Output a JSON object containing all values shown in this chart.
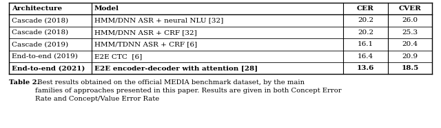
{
  "headers": [
    "Architecture",
    "Model",
    "CER",
    "CVER"
  ],
  "rows": [
    [
      "Cascade (2018)",
      "HMM/DNN ASR + neural NLU [32]",
      "20.2",
      "26.0"
    ],
    [
      "Cascade (2018)",
      "HMM/DNN ASR + CRF [32]",
      "20.2",
      "25.3"
    ],
    [
      "Cascade (2019)",
      "HMM/TDNN ASR + CRF [6]",
      "16.1",
      "20.4"
    ],
    [
      "End-to-end (2019)",
      "E2E CTC  [6]",
      "16.4",
      "20.9"
    ],
    [
      "End-to-end (2021)",
      "E2E encoder-decoder with attention [28]",
      "13.6",
      "18.5"
    ]
  ],
  "bold_last_row": true,
  "caption_bold": "Table 2.",
  "caption_normal": " Best results obtained on the official MEDIA benchmark dataset, by the main\nfamilies of approaches presented in this paper. Results are given in both Concept Error\nRate and Concept/Value Error Rate",
  "bg_color": "#ffffff",
  "text_color": "#000000",
  "font_size": 7.5,
  "caption_font_size": 7.2,
  "fig_width": 6.4,
  "fig_height": 1.87,
  "dpi": 100
}
